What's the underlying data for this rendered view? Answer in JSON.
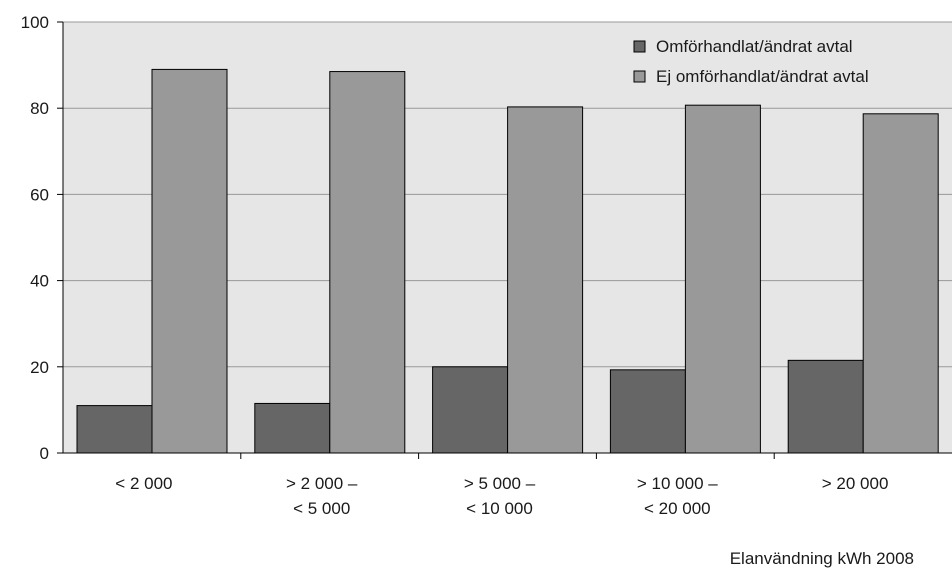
{
  "chart_data": {
    "type": "bar",
    "categories": [
      [
        "< 2 000"
      ],
      [
        "> 2 000 –",
        "< 5 000"
      ],
      [
        "> 5 000 –",
        "< 10 000"
      ],
      [
        "> 10 000 –",
        "< 20 000"
      ],
      [
        "> 20 000"
      ]
    ],
    "series": [
      {
        "name": "Omförhandlat/ändrat avtal",
        "values": [
          11,
          11.5,
          20,
          19.3,
          21.5
        ],
        "color": "#666666"
      },
      {
        "name": "Ej omförhandlat/ändrat avtal",
        "values": [
          89,
          88.5,
          80.3,
          80.7,
          78.7
        ],
        "color": "#999999"
      }
    ],
    "ylim": [
      0,
      100
    ],
    "yticks": [
      0,
      20,
      40,
      60,
      80,
      100
    ],
    "grid": true,
    "legend_position": "top-right",
    "xlabel": "Elanvändning kWh 2008",
    "ylabel": "",
    "title": "",
    "plot_background": "#e6e6e6"
  }
}
